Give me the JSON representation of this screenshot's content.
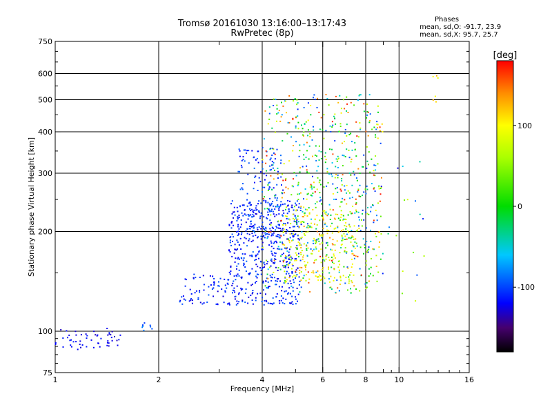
{
  "chart_data": {
    "type": "scatter",
    "title": "Tromsø 20161030 13:16:00–13:17:43",
    "subtitle": "RwPretec (8p)",
    "xlabel": "Frequency [MHz]",
    "ylabel": "Stationary phase Virtual Height [km]",
    "x_scale": "log",
    "y_scale": "log",
    "xlim": [
      1,
      16
    ],
    "ylim": [
      75,
      750
    ],
    "x_ticks": [
      {
        "value": 1,
        "label": "1"
      },
      {
        "value": 2,
        "label": "2"
      },
      {
        "value": 4,
        "label": "4"
      },
      {
        "value": 6,
        "label": "6"
      },
      {
        "value": 8,
        "label": "8"
      },
      {
        "value": 10,
        "label": "10"
      },
      {
        "value": 16,
        "label": "16"
      }
    ],
    "x_minor_ticks": [
      3,
      5,
      7,
      9
    ],
    "y_ticks": [
      {
        "value": 75,
        "label": "75"
      },
      {
        "value": 100,
        "label": "100"
      },
      {
        "value": 200,
        "label": "200"
      },
      {
        "value": 300,
        "label": "300"
      },
      {
        "value": 400,
        "label": "400"
      },
      {
        "value": 500,
        "label": "500"
      },
      {
        "value": 600,
        "label": "600"
      },
      {
        "value": 750,
        "label": "750"
      }
    ],
    "x_grid": [
      2,
      4,
      6,
      8,
      10
    ],
    "y_grid": [
      100,
      200,
      300,
      400,
      500,
      600
    ],
    "grid": true,
    "colorbar": {
      "label": "[deg]",
      "range": [
        -180,
        180
      ],
      "ticks": [
        {
          "value": 100,
          "label": "100"
        },
        {
          "value": 0,
          "label": "0"
        },
        {
          "value": -100,
          "label": "-100"
        }
      ]
    },
    "stats": {
      "heading": "Phases",
      "o_mode": "mean, sd,O: -91.7, 23.9",
      "x_mode": "mean, sd,X:  95.7, 25.7"
    },
    "clusters": [
      {
        "f": [
          1.0,
          1.55
        ],
        "h": [
          88,
          102
        ],
        "phase": [
          -135,
          -110
        ],
        "count": 55
      },
      {
        "f": [
          1.75,
          1.95
        ],
        "h": [
          100,
          106
        ],
        "phase": [
          -110,
          -80
        ],
        "count": 8
      },
      {
        "f": [
          2.3,
          3.2
        ],
        "h": [
          120,
          150
        ],
        "phase": [
          -130,
          -90
        ],
        "count": 70
      },
      {
        "f": [
          3.2,
          5.2
        ],
        "h": [
          120,
          250
        ],
        "phase": [
          -130,
          -90
        ],
        "count": 520
      },
      {
        "f": [
          3.4,
          4.6
        ],
        "h": [
          190,
          360
        ],
        "phase": [
          -125,
          -85
        ],
        "count": 150
      },
      {
        "f": [
          4.0,
          9.0
        ],
        "h": [
          130,
          520
        ],
        "phase": [
          -110,
          180
        ],
        "count": 520
      },
      {
        "f": [
          4.6,
          7.5
        ],
        "h": [
          140,
          240
        ],
        "phase": [
          60,
          130
        ],
        "count": 220
      },
      {
        "f": [
          5.0,
          8.6
        ],
        "h": [
          170,
          430
        ],
        "phase": [
          -110,
          40
        ],
        "count": 170
      },
      {
        "f": [
          8.0,
          12.0
        ],
        "h": [
          120,
          350
        ],
        "phase": [
          -130,
          100
        ],
        "count": 25
      },
      {
        "f": [
          12.5,
          13.0
        ],
        "h": [
          480,
          660
        ],
        "phase": [
          90,
          130
        ],
        "count": 6
      }
    ]
  }
}
